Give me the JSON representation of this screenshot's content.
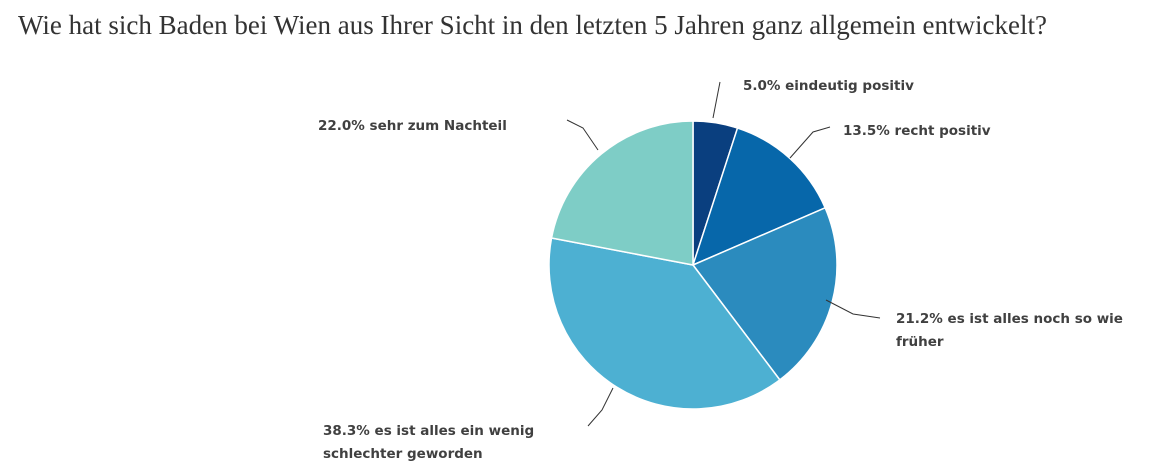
{
  "chart_data": {
    "type": "pie",
    "title": "Wie hat sich Baden bei Wien aus Ihrer Sicht in den letzten 5 Jahren ganz allgemein entwickelt?",
    "slices": [
      {
        "name": "eindeutig positiv",
        "value": 5.0,
        "color": "#0a3f7f",
        "label_lines": [
          "5.0% eindeutig positiv"
        ]
      },
      {
        "name": "recht positiv",
        "value": 13.5,
        "color": "#0767aa",
        "label_lines": [
          "13.5% recht positiv"
        ]
      },
      {
        "name": "es ist alles noch so wie früher",
        "value": 21.2,
        "color": "#2b8bbe",
        "label_lines": [
          "21.2% es ist alles noch so wie",
          "früher"
        ]
      },
      {
        "name": "es ist alles ein wenig schlechter geworden",
        "value": 38.3,
        "color": "#4db0d2",
        "label_lines": [
          "38.3% es ist alles ein wenig",
          "schlechter geworden"
        ]
      },
      {
        "name": "sehr zum Nachteil",
        "value": 22.0,
        "color": "#7ecdc6",
        "label_lines": [
          "22.0% sehr zum Nachteil"
        ]
      }
    ]
  }
}
